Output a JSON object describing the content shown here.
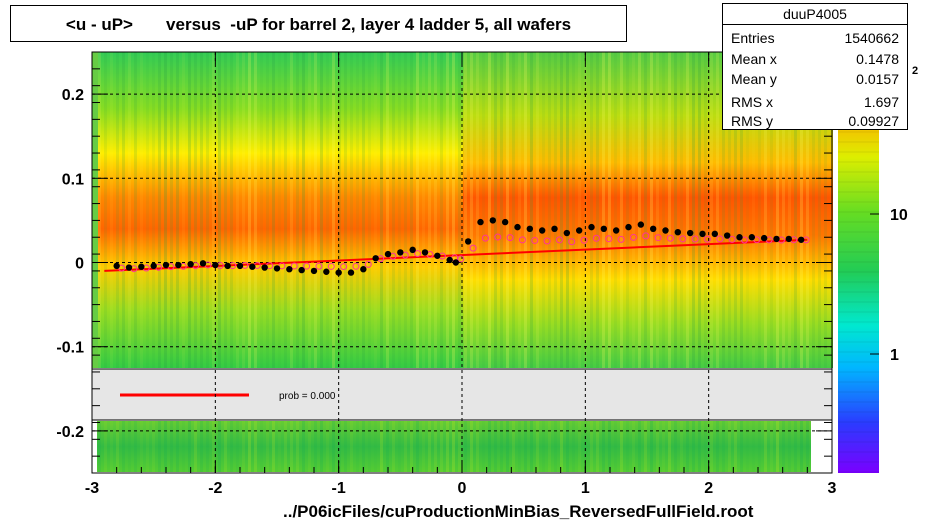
{
  "title": "<u - uP>       versus  -uP for barrel 2, layer 4 ladder 5, all wafers",
  "stats": {
    "name": "duuP4005",
    "rows": [
      {
        "key": "Entries",
        "value": "1540662"
      },
      {
        "key": "Mean x",
        "value": "0.1478"
      },
      {
        "key": "Mean y",
        "value": "0.0157"
      },
      {
        "key": "RMS x",
        "value": "1.697"
      },
      {
        "key": "RMS y",
        "value": "0.09927"
      }
    ]
  },
  "legend_text": "prob = 0.000",
  "footer": "../P06icFiles/cuProductionMinBias_ReversedFullField.root",
  "palette_labels": [
    "10",
    "1"
  ],
  "palette_partial_label": "2",
  "colors": {
    "fit_line": "#ff0000",
    "profile_markers": "#000000",
    "open_markers": "#ff3399",
    "legend_fill": "#e6e6e6"
  },
  "chart_data": {
    "type": "heatmap",
    "xlim": [
      -3,
      3
    ],
    "ylim": [
      -0.25,
      0.25
    ],
    "x_ticks": [
      "-3",
      "-2",
      "-1",
      "0",
      "1",
      "2",
      "3"
    ],
    "y_ticks": [
      "-0.2",
      "-0.1",
      "0",
      "0.1",
      "0.2"
    ],
    "grid": true,
    "z_scale": "log",
    "fit_line": {
      "x": [
        -2.9,
        2.8
      ],
      "y": [
        -0.01,
        0.027
      ]
    },
    "profile_points": {
      "x": [
        -2.8,
        -2.7,
        -2.6,
        -2.5,
        -2.4,
        -2.3,
        -2.2,
        -2.1,
        -2.0,
        -1.9,
        -1.8,
        -1.7,
        -1.6,
        -1.5,
        -1.4,
        -1.3,
        -1.2,
        -1.1,
        -1.0,
        -0.9,
        -0.8,
        -0.7,
        -0.6,
        -0.5,
        -0.4,
        -0.3,
        -0.2,
        -0.1,
        -0.05,
        0.05,
        0.15,
        0.25,
        0.35,
        0.45,
        0.55,
        0.65,
        0.75,
        0.85,
        0.95,
        1.05,
        1.15,
        1.25,
        1.35,
        1.45,
        1.55,
        1.65,
        1.75,
        1.85,
        1.95,
        2.05,
        2.15,
        2.25,
        2.35,
        2.45,
        2.55,
        2.65,
        2.75
      ],
      "y": [
        -0.004,
        -0.006,
        -0.005,
        -0.004,
        -0.003,
        -0.003,
        -0.002,
        -0.001,
        -0.003,
        -0.004,
        -0.004,
        -0.005,
        -0.006,
        -0.007,
        -0.008,
        -0.009,
        -0.01,
        -0.011,
        -0.012,
        -0.012,
        -0.008,
        0.005,
        0.01,
        0.012,
        0.015,
        0.012,
        0.008,
        0.003,
        0.0,
        0.025,
        0.048,
        0.05,
        0.048,
        0.042,
        0.04,
        0.038,
        0.04,
        0.035,
        0.038,
        0.042,
        0.04,
        0.038,
        0.042,
        0.045,
        0.04,
        0.038,
        0.036,
        0.035,
        0.034,
        0.034,
        0.032,
        0.03,
        0.03,
        0.029,
        0.028,
        0.028,
        0.027
      ]
    }
  }
}
